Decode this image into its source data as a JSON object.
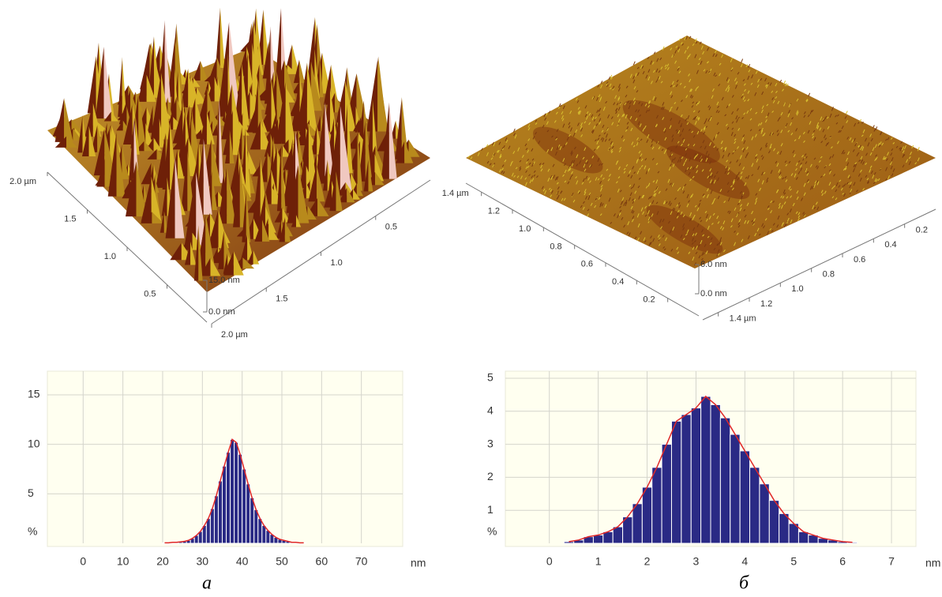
{
  "chart_data": [
    {
      "type": "surface",
      "xlim": [
        0,
        2
      ],
      "xticks": [
        0.5,
        {
          "value": 1,
          "label": "1.0"
        },
        1.5,
        {
          "value": 2,
          "label": "2.0 µm"
        }
      ],
      "ylim": [
        0,
        2
      ],
      "yticks": [
        0.5,
        {
          "value": 1,
          "label": "1.0"
        },
        1.5,
        {
          "value": 2,
          "label": "2.0 µm"
        }
      ],
      "zlim": [
        0,
        15
      ],
      "zticks": [
        {
          "value": 0,
          "label": "0.0 nm"
        },
        {
          "value": 15,
          "label": "15.0 nm"
        }
      ]
    },
    {
      "type": "surface",
      "xlim": [
        0,
        1.5
      ],
      "xticks": [
        0.2,
        0.4,
        0.6,
        0.8,
        {
          "value": 1,
          "label": "1.0"
        },
        1.2,
        {
          "value": 1.4,
          "label": "1.4 µm"
        }
      ],
      "ylim": [
        0,
        1.5
      ],
      "yticks": [
        0.2,
        0.4,
        0.6,
        0.8,
        {
          "value": 1,
          "label": "1.0"
        },
        1.2,
        {
          "value": 1.4,
          "label": "1.4 µm"
        }
      ],
      "zlim": [
        0,
        6
      ],
      "zticks": [
        {
          "value": 0,
          "label": "0.0 nm"
        },
        {
          "value": 6,
          "label": "6.0 nm"
        }
      ]
    },
    {
      "type": "histogram",
      "caption": "a",
      "xlabel": "nm",
      "ylabel": "%",
      "color": "#2a2a85",
      "line_color": "#e02828",
      "grid": true,
      "bins": [
        20,
        21,
        22,
        23,
        24,
        25,
        26,
        27,
        28,
        29,
        30,
        31,
        32,
        33,
        34,
        35,
        36,
        37,
        38,
        39,
        40,
        41,
        42,
        43,
        44,
        45,
        46,
        47,
        48,
        49,
        50,
        51,
        52,
        53,
        54,
        55,
        56
      ],
      "values": [
        0.05,
        0.05,
        0.1,
        0.1,
        0.15,
        0.2,
        0.3,
        0.5,
        0.8,
        1.2,
        1.8,
        2.5,
        3.5,
        4.8,
        6.3,
        7.8,
        9.2,
        10.5,
        10.2,
        9.0,
        7.5,
        6.0,
        4.6,
        3.4,
        2.5,
        1.8,
        1.3,
        0.9,
        0.6,
        0.4,
        0.3,
        0.2,
        0.1,
        0.1,
        0.05,
        0.05
      ],
      "xlim": [
        -9,
        80
      ],
      "xticks": [
        0,
        10,
        20,
        30,
        40,
        50,
        60,
        70
      ],
      "ylim": [
        0,
        15
      ],
      "yticks": [
        5,
        10,
        15
      ]
    },
    {
      "type": "histogram",
      "caption": "б",
      "xlabel": "nm",
      "ylabel": "%",
      "color": "#2a2a85",
      "line_color": "#e02828",
      "grid": true,
      "bins": [
        0.3,
        0.5,
        0.7,
        0.9,
        1.1,
        1.3,
        1.5,
        1.7,
        1.9,
        2.1,
        2.3,
        2.5,
        2.7,
        2.9,
        3.1,
        3.3,
        3.5,
        3.7,
        3.9,
        4.1,
        4.3,
        4.5,
        4.7,
        4.9,
        5.1,
        5.3,
        5.5,
        5.7,
        5.9,
        6.1,
        6.3
      ],
      "values": [
        0.05,
        0.1,
        0.2,
        0.25,
        0.35,
        0.5,
        0.8,
        1.2,
        1.7,
        2.3,
        3.0,
        3.7,
        3.9,
        4.1,
        4.45,
        4.2,
        3.8,
        3.3,
        2.8,
        2.3,
        1.8,
        1.3,
        0.9,
        0.6,
        0.35,
        0.25,
        0.15,
        0.1,
        0.05,
        0.03
      ],
      "xlim": [
        -0.9,
        7.5
      ],
      "xticks": [
        0,
        1,
        2,
        3,
        4,
        5,
        6,
        7
      ],
      "ylim": [
        0,
        5
      ],
      "yticks": [
        1,
        2,
        3,
        4,
        5
      ]
    }
  ]
}
